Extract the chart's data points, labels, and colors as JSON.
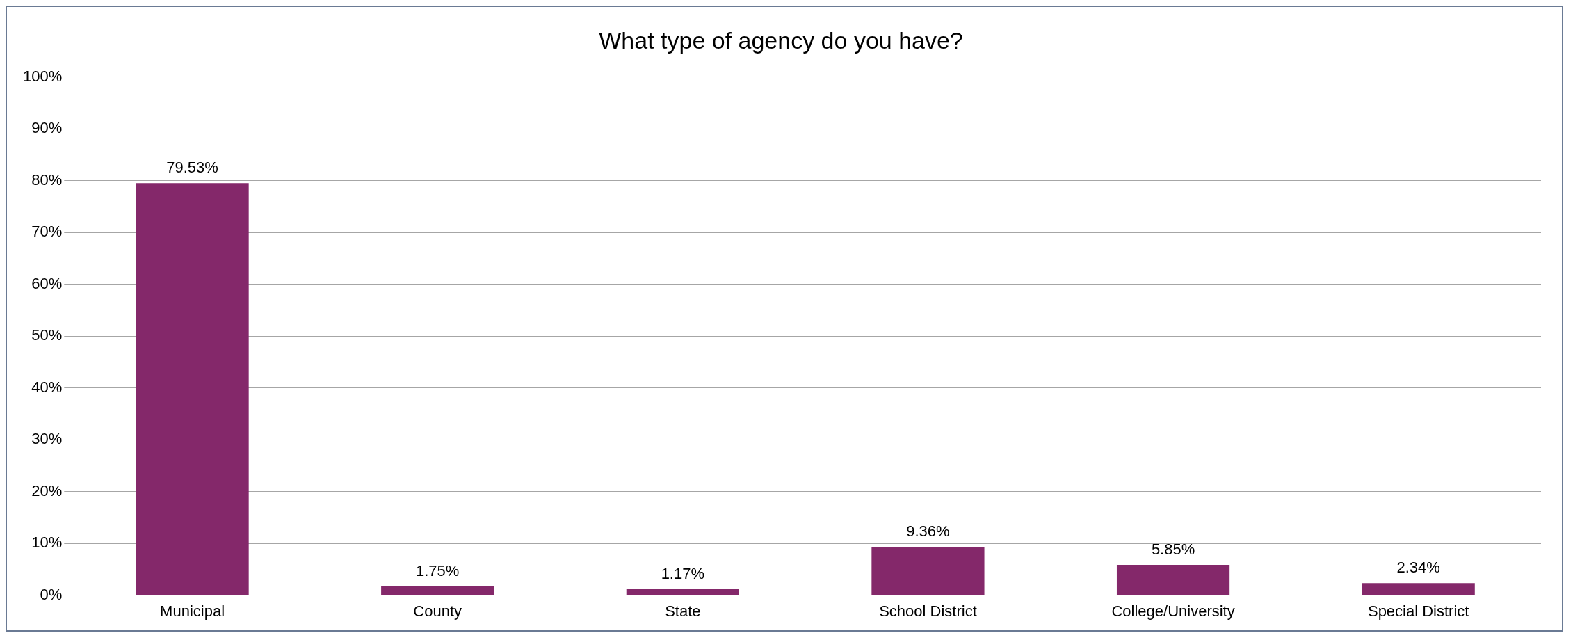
{
  "chart_data": {
    "type": "bar",
    "title": "What type of agency do you have?",
    "categories": [
      "Municipal",
      "County",
      "State",
      "School District",
      "College/University",
      "Special District"
    ],
    "values": [
      79.53,
      1.75,
      1.17,
      9.36,
      5.85,
      2.34
    ],
    "value_labels": [
      "79.53%",
      "1.75%",
      "1.17%",
      "9.36%",
      "5.85%",
      "2.34%"
    ],
    "color": "#84286a",
    "ylim": [
      0,
      100
    ],
    "yticks": [
      {
        "value": 0,
        "label": "0%"
      },
      {
        "value": 10,
        "label": "10%"
      },
      {
        "value": 20,
        "label": "20%"
      },
      {
        "value": 30,
        "label": "30%"
      },
      {
        "value": 40,
        "label": "40%"
      },
      {
        "value": 50,
        "label": "50%"
      },
      {
        "value": 60,
        "label": "60%"
      },
      {
        "value": 70,
        "label": "70%"
      },
      {
        "value": 80,
        "label": "80%"
      },
      {
        "value": 90,
        "label": "90%"
      },
      {
        "value": 100,
        "label": "100%"
      }
    ],
    "grid": "y",
    "legend": false
  }
}
